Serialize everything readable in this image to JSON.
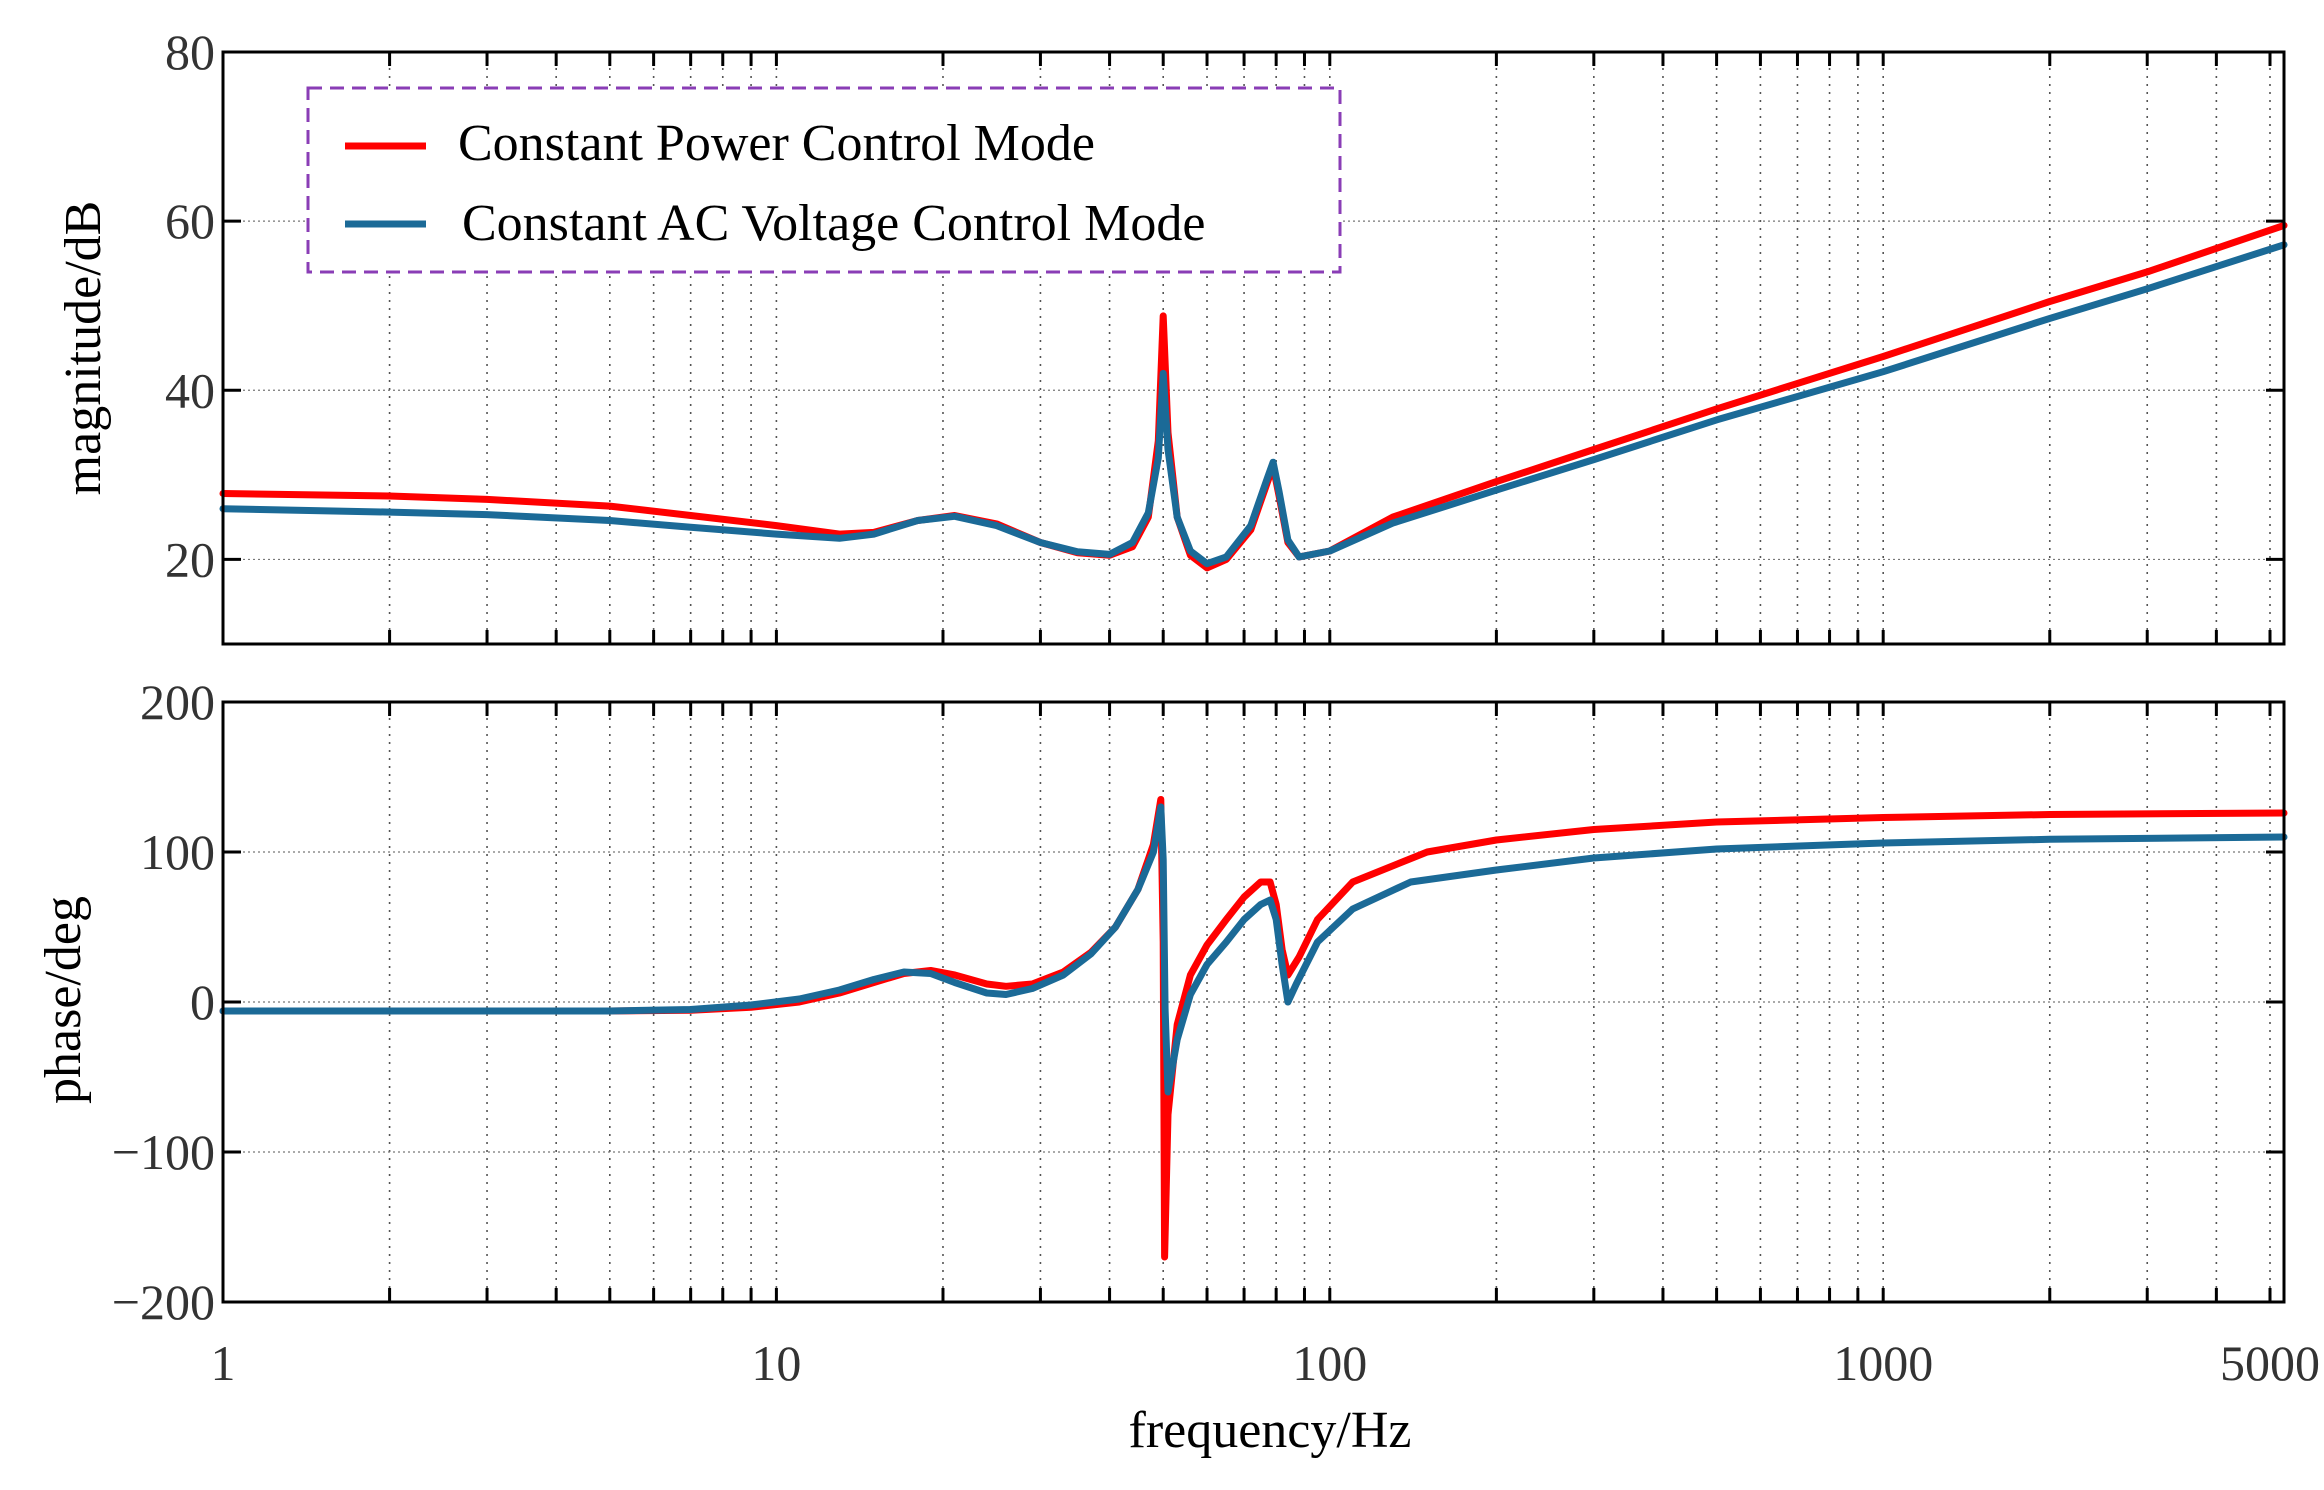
{
  "chart_data": [
    {
      "type": "line",
      "panel": "magnitude",
      "xscale": "log",
      "xlim": [
        1,
        5300
      ],
      "ylim": [
        10,
        80
      ],
      "yticks": [
        20,
        40,
        60,
        80
      ],
      "xlabel": "",
      "ylabel": "magnitude/dB",
      "grid": true,
      "legend": {
        "placement": "top-left",
        "border_color": "#8a3db6",
        "entries": [
          "Constant Power Control Mode",
          "Constant AC Voltage Control Mode"
        ]
      },
      "series": [
        {
          "name": "Constant Power Control Mode",
          "color": "#ff0000",
          "points": [
            [
              1,
              27.8
            ],
            [
              2,
              27.5
            ],
            [
              3,
              27.1
            ],
            [
              5,
              26.3
            ],
            [
              7,
              25.2
            ],
            [
              10,
              24.0
            ],
            [
              13,
              23.0
            ],
            [
              15,
              23.2
            ],
            [
              18,
              24.6
            ],
            [
              21,
              25.2
            ],
            [
              25,
              24.2
            ],
            [
              30,
              22.0
            ],
            [
              35,
              20.8
            ],
            [
              40,
              20.5
            ],
            [
              44,
              21.5
            ],
            [
              47,
              25.0
            ],
            [
              49,
              34.0
            ],
            [
              50,
              48.8
            ],
            [
              51,
              35.0
            ],
            [
              53,
              25.0
            ],
            [
              56,
              20.5
            ],
            [
              60,
              19.0
            ],
            [
              65,
              20.0
            ],
            [
              72,
              23.5
            ],
            [
              77,
              29.0
            ],
            [
              79,
              31.0
            ],
            [
              81,
              27.5
            ],
            [
              84,
              22.0
            ],
            [
              88,
              20.3
            ],
            [
              100,
              21.0
            ],
            [
              130,
              25.0
            ],
            [
              200,
              29.2
            ],
            [
              300,
              33.0
            ],
            [
              500,
              37.8
            ],
            [
              1000,
              44.0
            ],
            [
              2000,
              50.5
            ],
            [
              3000,
              54.0
            ],
            [
              5300,
              59.5
            ]
          ]
        },
        {
          "name": "Constant AC Voltage Control Mode",
          "color": "#1b6a97",
          "points": [
            [
              1,
              26.0
            ],
            [
              2,
              25.6
            ],
            [
              3,
              25.3
            ],
            [
              5,
              24.6
            ],
            [
              7,
              23.8
            ],
            [
              10,
              23.0
            ],
            [
              13,
              22.5
            ],
            [
              15,
              23.0
            ],
            [
              18,
              24.6
            ],
            [
              21,
              25.1
            ],
            [
              25,
              24.0
            ],
            [
              30,
              22.0
            ],
            [
              35,
              20.9
            ],
            [
              40,
              20.6
            ],
            [
              44,
              22.0
            ],
            [
              47,
              25.5
            ],
            [
              49,
              32.0
            ],
            [
              50,
              42.0
            ],
            [
              51,
              33.0
            ],
            [
              53,
              25.0
            ],
            [
              56,
              21.0
            ],
            [
              60,
              19.5
            ],
            [
              65,
              20.3
            ],
            [
              72,
              24.0
            ],
            [
              77,
              29.5
            ],
            [
              79,
              31.5
            ],
            [
              81,
              28.0
            ],
            [
              84,
              22.3
            ],
            [
              88,
              20.3
            ],
            [
              100,
              21.0
            ],
            [
              130,
              24.3
            ],
            [
              200,
              28.2
            ],
            [
              300,
              31.8
            ],
            [
              500,
              36.5
            ],
            [
              1000,
              42.2
            ],
            [
              2000,
              48.5
            ],
            [
              3000,
              52.0
            ],
            [
              5300,
              57.2
            ]
          ]
        }
      ]
    },
    {
      "type": "line",
      "panel": "phase",
      "xscale": "log",
      "xlim": [
        1,
        5300
      ],
      "ylim": [
        -200,
        200
      ],
      "yticks": [
        -200,
        -100,
        0,
        100,
        200
      ],
      "xticks": [
        1,
        10,
        100,
        1000,
        5000
      ],
      "xlabel": "frequency/Hz",
      "ylabel": "phase/deg",
      "grid": true,
      "series": [
        {
          "name": "Constant Power Control Mode",
          "color": "#ff0000",
          "points": [
            [
              1,
              -6.0
            ],
            [
              3,
              -6.0
            ],
            [
              5,
              -6.0
            ],
            [
              7,
              -5.5
            ],
            [
              9,
              -3.5
            ],
            [
              11,
              0.0
            ],
            [
              13,
              6.0
            ],
            [
              15,
              13.0
            ],
            [
              17,
              19.0
            ],
            [
              19,
              21.0
            ],
            [
              21,
              18.0
            ],
            [
              24,
              12.0
            ],
            [
              26,
              10.5
            ],
            [
              29,
              12.0
            ],
            [
              33,
              20.0
            ],
            [
              37,
              33.0
            ],
            [
              41,
              50.0
            ],
            [
              45,
              75.0
            ],
            [
              48,
              105.0
            ],
            [
              49.5,
              135.0
            ],
            [
              50,
              40.0
            ],
            [
              50.3,
              -170.0
            ],
            [
              51,
              -75.0
            ],
            [
              53,
              -15.0
            ],
            [
              56,
              18.0
            ],
            [
              60,
              38.0
            ],
            [
              65,
              55.0
            ],
            [
              70,
              70.0
            ],
            [
              75,
              80.0
            ],
            [
              78,
              80.0
            ],
            [
              80,
              65.0
            ],
            [
              82,
              35.0
            ],
            [
              84,
              18.0
            ],
            [
              88,
              30.0
            ],
            [
              95,
              55.0
            ],
            [
              110,
              80.0
            ],
            [
              150,
              100.0
            ],
            [
              200,
              108.0
            ],
            [
              300,
              115.0
            ],
            [
              500,
              120.0
            ],
            [
              1000,
              123.0
            ],
            [
              2000,
              125.0
            ],
            [
              5300,
              126.0
            ]
          ]
        },
        {
          "name": "Constant AC Voltage Control Mode",
          "color": "#1b6a97",
          "points": [
            [
              1,
              -6.0
            ],
            [
              3,
              -6.0
            ],
            [
              5,
              -6.0
            ],
            [
              7,
              -5.0
            ],
            [
              9,
              -2.0
            ],
            [
              11,
              2.0
            ],
            [
              13,
              8.0
            ],
            [
              15,
              15.0
            ],
            [
              17,
              20.0
            ],
            [
              19,
              19.0
            ],
            [
              21,
              13.0
            ],
            [
              24,
              6.0
            ],
            [
              26,
              5.0
            ],
            [
              29,
              9.0
            ],
            [
              33,
              18.0
            ],
            [
              37,
              32.0
            ],
            [
              41,
              50.0
            ],
            [
              45,
              75.0
            ],
            [
              48,
              100.0
            ],
            [
              49.5,
              130.0
            ],
            [
              50,
              95.0
            ],
            [
              50.4,
              -5.0
            ],
            [
              51,
              -60.0
            ],
            [
              53,
              -25.0
            ],
            [
              56,
              5.0
            ],
            [
              60,
              25.0
            ],
            [
              65,
              40.0
            ],
            [
              70,
              55.0
            ],
            [
              75,
              65.0
            ],
            [
              78,
              68.0
            ],
            [
              80,
              55.0
            ],
            [
              82,
              25.0
            ],
            [
              84,
              0.0
            ],
            [
              87,
              12.0
            ],
            [
              95,
              40.0
            ],
            [
              110,
              62.0
            ],
            [
              140,
              80.0
            ],
            [
              200,
              88.0
            ],
            [
              300,
              96.0
            ],
            [
              500,
              102.0
            ],
            [
              1000,
              106.0
            ],
            [
              2000,
              108.5
            ],
            [
              5300,
              110.0
            ]
          ]
        }
      ]
    }
  ]
}
